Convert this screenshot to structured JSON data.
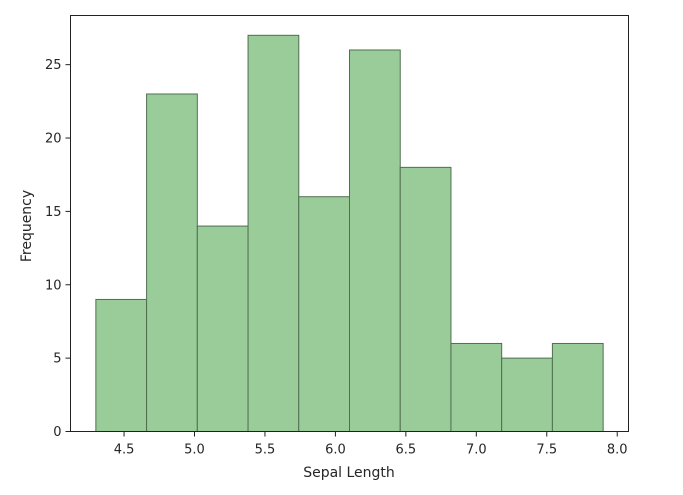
{
  "chart_data": {
    "type": "bar",
    "subtype": "histogram",
    "title": "",
    "xlabel": "Sepal Length",
    "ylabel": "Frequency",
    "bins": [
      {
        "start": 4.3,
        "end": 4.66,
        "count": 9
      },
      {
        "start": 4.66,
        "end": 5.02,
        "count": 23
      },
      {
        "start": 5.02,
        "end": 5.38,
        "count": 14
      },
      {
        "start": 5.38,
        "end": 5.74,
        "count": 27
      },
      {
        "start": 5.74,
        "end": 6.1,
        "count": 16
      },
      {
        "start": 6.1,
        "end": 6.46,
        "count": 26
      },
      {
        "start": 6.46,
        "end": 6.82,
        "count": 18
      },
      {
        "start": 6.82,
        "end": 7.18,
        "count": 6
      },
      {
        "start": 7.18,
        "end": 7.54,
        "count": 5
      },
      {
        "start": 7.54,
        "end": 7.9,
        "count": 6
      }
    ],
    "xlim": [
      4.12,
      8.08
    ],
    "ylim": [
      0,
      28.35
    ],
    "xticks": [
      {
        "value": 4.5,
        "label": "4.5"
      },
      {
        "value": 5.0,
        "label": "5.0"
      },
      {
        "value": 5.5,
        "label": "5.5"
      },
      {
        "value": 6.0,
        "label": "6.0"
      },
      {
        "value": 6.5,
        "label": "6.5"
      },
      {
        "value": 7.0,
        "label": "7.0"
      },
      {
        "value": 7.5,
        "label": "7.5"
      },
      {
        "value": 8.0,
        "label": "8.0"
      }
    ],
    "yticks": [
      {
        "value": 0,
        "label": "0"
      },
      {
        "value": 5,
        "label": "5"
      },
      {
        "value": 10,
        "label": "10"
      },
      {
        "value": 15,
        "label": "15"
      },
      {
        "value": 20,
        "label": "20"
      },
      {
        "value": 25,
        "label": "25"
      }
    ],
    "grid": false,
    "colors": {
      "bar_fill": "#99cc99",
      "bar_edge": "#4f6f4f"
    }
  }
}
